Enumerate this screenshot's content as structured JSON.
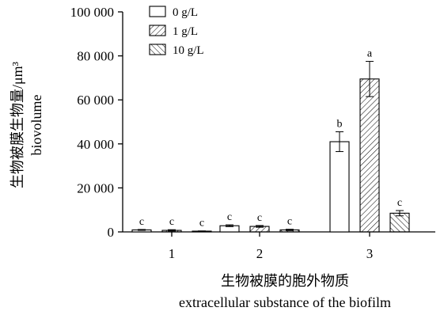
{
  "chart_data": {
    "type": "bar",
    "categories": [
      "1",
      "2",
      "3"
    ],
    "series": [
      {
        "name": "0 g/L",
        "pattern": "none",
        "values": [
          900,
          2800,
          41000
        ],
        "errors": [
          200,
          400,
          4500
        ],
        "labels": [
          "c",
          "c",
          "b"
        ]
      },
      {
        "name": "1 g/L",
        "pattern": "diagonal-right",
        "values": [
          700,
          2500,
          69500
        ],
        "errors": [
          300,
          400,
          8000
        ],
        "labels": [
          "c",
          "c",
          "a"
        ]
      },
      {
        "name": "10 g/L",
        "pattern": "diagonal-left",
        "values": [
          350,
          900,
          8500
        ],
        "errors": [
          100,
          300,
          1200
        ],
        "labels": [
          "c",
          "c",
          "c"
        ]
      }
    ],
    "ylim": [
      0,
      100000
    ],
    "yticks": [
      0,
      20000,
      40000,
      60000,
      80000,
      100000
    ],
    "ytick_labels": [
      "0",
      "20 000",
      "40 000",
      "60 000",
      "80 000",
      "100 000"
    ],
    "ylabel_zh": "生物被膜生物量/μm³",
    "ylabel_en": "biovolume",
    "xlabel_zh": "生物被膜的胞外物质",
    "xlabel_en": "extracellular substance of the biofilm",
    "legend_position": "top-left",
    "grid": false,
    "colors": {
      "axis": "#000000",
      "bar_fill": "#ffffff",
      "bar_stroke": "#000000"
    }
  }
}
